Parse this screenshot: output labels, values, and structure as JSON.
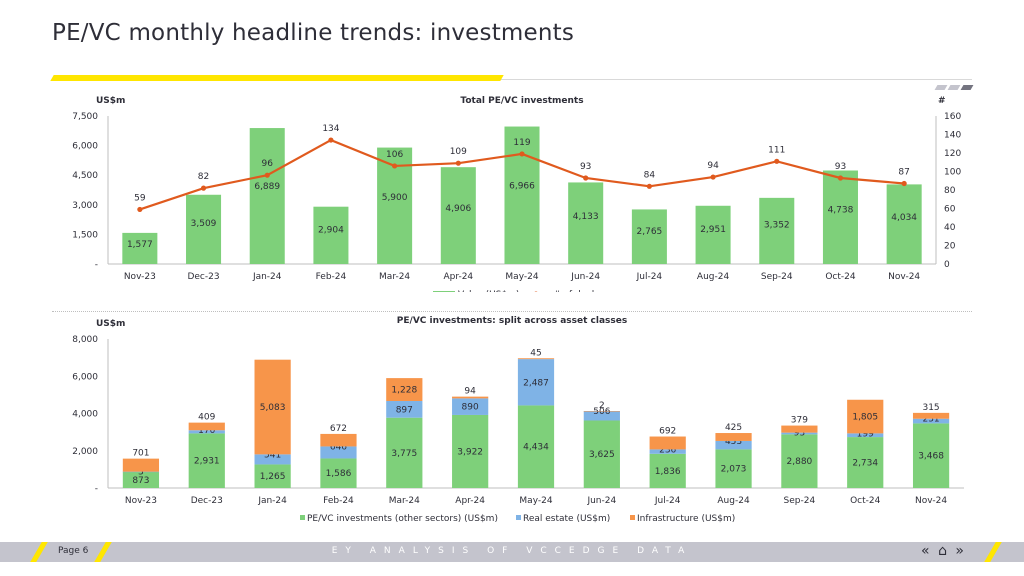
{
  "page": {
    "title": "PE/VC monthly headline trends: investments",
    "footer_page": "Page 6",
    "footer_center": "EY ANALYSIS OF VCCEDGE DATA",
    "nav_prev": "«",
    "nav_home": "⌂",
    "nav_next": "»"
  },
  "colors": {
    "green": "#7ed07a",
    "blue": "#7fb3e6",
    "orange": "#f7954a",
    "line": "#e05a1e",
    "yellow": "#ffe600"
  },
  "chart_data": [
    {
      "type": "bar",
      "title": "Total PE/VC investments",
      "ylabel": "US$m",
      "y2label": "#",
      "categories": [
        "Nov-23",
        "Dec-23",
        "Jan-24",
        "Feb-24",
        "Mar-24",
        "Apr-24",
        "May-24",
        "Jun-24",
        "Jul-24",
        "Aug-24",
        "Sep-24",
        "Oct-24",
        "Nov-24"
      ],
      "ylim": [
        0,
        7500
      ],
      "yticks": [
        "-",
        "1,500",
        "3,000",
        "4,500",
        "6,000",
        "7,500"
      ],
      "y2lim": [
        0,
        160
      ],
      "y2ticks": [
        "0",
        "20",
        "40",
        "60",
        "80",
        "100",
        "120",
        "140",
        "160"
      ],
      "series": [
        {
          "name": "Value (US$m)",
          "kind": "bar",
          "values": [
            1577,
            3509,
            6889,
            2904,
            5900,
            4906,
            6966,
            4133,
            2765,
            2951,
            3352,
            4738,
            4034
          ],
          "labels": [
            "1,577",
            "3,509",
            "6,889",
            "2,904",
            "5,900",
            "4,906",
            "6,966",
            "4,133",
            "2,765",
            "2,951",
            "3,352",
            "4,738",
            "4,034"
          ]
        },
        {
          "name": "# of deals",
          "kind": "line",
          "axis": "right",
          "values": [
            59,
            82,
            96,
            134,
            106,
            109,
            119,
            93,
            84,
            94,
            111,
            93,
            87
          ],
          "labels": [
            "59",
            "82",
            "96",
            "134",
            "106",
            "109",
            "119",
            "93",
            "84",
            "94",
            "111",
            "93",
            "87"
          ]
        }
      ],
      "legend": "bottom"
    },
    {
      "type": "bar",
      "stacked": true,
      "title": "PE/VC investments: split across asset classes",
      "ylabel": "US$m",
      "categories": [
        "Nov-23",
        "Dec-23",
        "Jan-24",
        "Feb-24",
        "Mar-24",
        "Apr-24",
        "May-24",
        "Jun-24",
        "Jul-24",
        "Aug-24",
        "Sep-24",
        "Oct-24",
        "Nov-24"
      ],
      "ylim": [
        0,
        8000
      ],
      "yticks": [
        "-",
        "2,000",
        "4,000",
        "6,000",
        "8,000"
      ],
      "series": [
        {
          "name": "PE/VC investments (other sectors) (US$m)",
          "values": [
            873,
            2931,
            1265,
            1586,
            3775,
            3922,
            4434,
            3625,
            1836,
            2073,
            2880,
            2734,
            3468
          ],
          "labels": [
            "873",
            "2,931",
            "1,265",
            "1,586",
            "3,775",
            "3,922",
            "4,434",
            "3,625",
            "1,836",
            "2,073",
            "2,880",
            "2,734",
            "3,468"
          ]
        },
        {
          "name": "Real estate (US$m)",
          "values": [
            3,
            170,
            541,
            646,
            897,
            890,
            2487,
            506,
            236,
            453,
            93,
            199,
            251
          ],
          "labels": [
            "3",
            "170",
            "541",
            "646",
            "897",
            "890",
            "2,487",
            "506",
            "236",
            "453",
            "93",
            "199",
            "251"
          ]
        },
        {
          "name": "Infrastructure (US$m)",
          "values": [
            701,
            409,
            5083,
            672,
            1228,
            94,
            45,
            2,
            692,
            425,
            379,
            1805,
            315
          ],
          "labels": [
            "701",
            "409",
            "5,083",
            "672",
            "1,228",
            "94",
            "45",
            "2",
            "692",
            "425",
            "379",
            "1,805",
            "315"
          ]
        }
      ],
      "legend": "bottom"
    }
  ]
}
